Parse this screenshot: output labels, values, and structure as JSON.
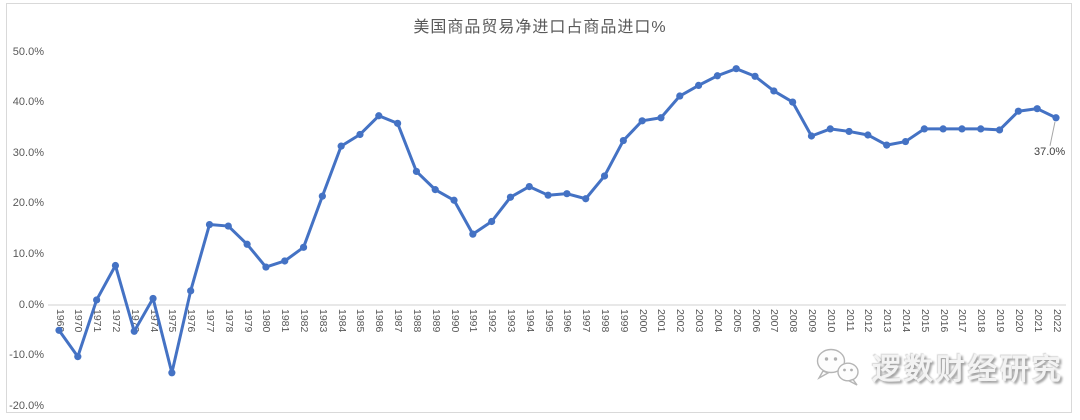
{
  "page": {
    "background_color": "#ffffff",
    "frame_border_color": "#d9d9d9",
    "text_color": "#595959"
  },
  "chart_data": {
    "type": "line",
    "title": "美国商品贸易净进口占商品进口%",
    "xlabel": "",
    "ylabel": "",
    "ylim": [
      -20,
      50
    ],
    "grid": "zero-line-only",
    "legend": "none",
    "line_color": "#4472C4",
    "marker": "circle",
    "yticks": [
      {
        "value": 50,
        "label": "50.0%"
      },
      {
        "value": 40,
        "label": "40.0%"
      },
      {
        "value": 30,
        "label": "30.0%"
      },
      {
        "value": 20,
        "label": "20.0%"
      },
      {
        "value": 10,
        "label": "10.0%"
      },
      {
        "value": 0,
        "label": "0.0%"
      },
      {
        "value": -10,
        "label": "-10.0%"
      },
      {
        "value": -20,
        "label": "-20.0%"
      }
    ],
    "x": [
      1969,
      1970,
      1971,
      1972,
      1973,
      1974,
      1975,
      1976,
      1977,
      1978,
      1979,
      1980,
      1981,
      1982,
      1983,
      1984,
      1985,
      1986,
      1987,
      1988,
      1989,
      1990,
      1991,
      1992,
      1993,
      1994,
      1995,
      1996,
      1997,
      1998,
      1999,
      2000,
      2001,
      2002,
      2003,
      2004,
      2005,
      2006,
      2007,
      2008,
      2009,
      2010,
      2011,
      2012,
      2013,
      2014,
      2015,
      2016,
      2017,
      2018,
      2019,
      2020,
      2021,
      2022
    ],
    "values": [
      -5.0,
      -10.2,
      1.0,
      7.8,
      -5.2,
      1.3,
      -13.4,
      2.8,
      15.9,
      15.6,
      12.0,
      7.5,
      8.7,
      11.4,
      21.5,
      31.4,
      33.7,
      37.4,
      35.9,
      26.4,
      22.8,
      20.7,
      14.0,
      16.5,
      21.3,
      23.4,
      21.7,
      22.0,
      21.0,
      25.5,
      32.5,
      36.4,
      37.0,
      41.3,
      43.4,
      45.3,
      46.7,
      45.2,
      42.3,
      40.1,
      33.4,
      34.8,
      34.3,
      33.6,
      31.6,
      32.3,
      34.8,
      34.8,
      34.8,
      34.8,
      34.6,
      38.3,
      38.8,
      37.0
    ],
    "last_point": {
      "year": 2022,
      "label": "37.0%"
    }
  },
  "watermark": {
    "text": "逻数财经研究",
    "icon": "wechat-chat-bubbles-icon"
  }
}
